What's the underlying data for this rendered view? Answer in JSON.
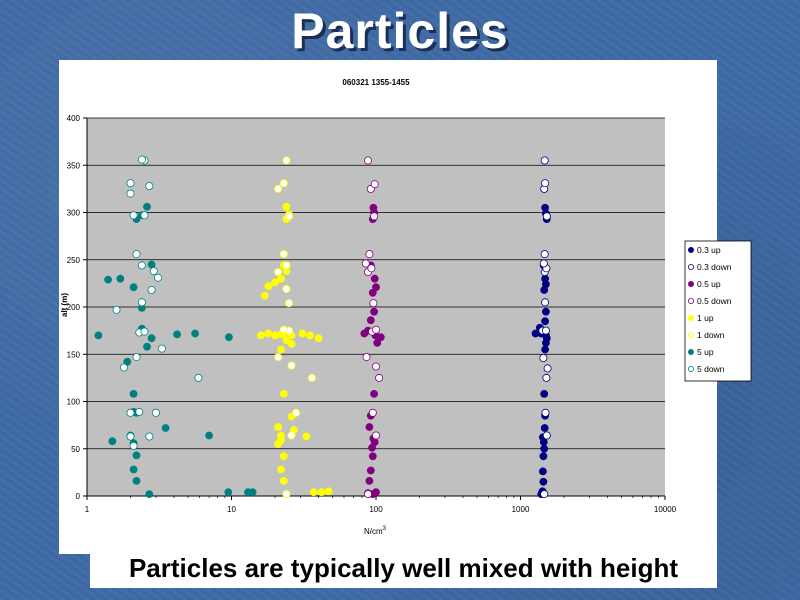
{
  "slide": {
    "title": "Particles",
    "caption": "Particles are typically well mixed with height"
  },
  "colors": {
    "plot_bg": "#c0c0c0",
    "gridline": "#000000"
  },
  "chart_data": {
    "type": "scatter",
    "title": "060321 1355-1455",
    "xlabel_main": "N/cm",
    "xlabel_sup": "3",
    "ylabel": "alt (m)",
    "x_scale": "log",
    "xlim": [
      1,
      10000
    ],
    "ylim": [
      0,
      400
    ],
    "x_ticks": [
      "1",
      "10",
      "100",
      "1000",
      "10000"
    ],
    "y_ticks": [
      "0",
      "50",
      "100",
      "150",
      "200",
      "250",
      "300",
      "350",
      "400"
    ],
    "grid": "horizontal",
    "legend_position": "right",
    "series": [
      {
        "name": "0.3 up",
        "color": "#000080",
        "filled": true,
        "points": [
          [
            1390,
            2
          ],
          [
            1410,
            3
          ],
          [
            1420,
            5
          ],
          [
            1440,
            15
          ],
          [
            1430,
            26
          ],
          [
            1440,
            42
          ],
          [
            1460,
            50
          ],
          [
            1450,
            57
          ],
          [
            1430,
            62
          ],
          [
            1470,
            72
          ],
          [
            1480,
            85
          ],
          [
            1460,
            108
          ],
          [
            1480,
            155
          ],
          [
            1500,
            162
          ],
          [
            1520,
            167
          ],
          [
            1500,
            170
          ],
          [
            1270,
            172
          ],
          [
            1390,
            172
          ],
          [
            1360,
            178
          ],
          [
            1480,
            185
          ],
          [
            1500,
            195
          ],
          [
            1460,
            218
          ],
          [
            1500,
            224
          ],
          [
            1480,
            230
          ],
          [
            1450,
            244
          ],
          [
            1520,
            293
          ],
          [
            1500,
            299
          ],
          [
            1480,
            305
          ]
        ]
      },
      {
        "name": "0.3 down",
        "color": "#000080",
        "filled": false,
        "points": [
          [
            1460,
            2
          ],
          [
            1520,
            64
          ],
          [
            1490,
            88
          ],
          [
            1510,
            125
          ],
          [
            1540,
            135
          ],
          [
            1440,
            146
          ],
          [
            1420,
            175
          ],
          [
            1500,
            175
          ],
          [
            1480,
            205
          ],
          [
            1470,
            237
          ],
          [
            1510,
            241
          ],
          [
            1450,
            246
          ],
          [
            1470,
            256
          ],
          [
            1520,
            296
          ],
          [
            1460,
            325
          ],
          [
            1480,
            331
          ],
          [
            1470,
            355
          ]
        ]
      },
      {
        "name": "0.5 up",
        "color": "#800080",
        "filled": true,
        "points": [
          [
            88,
            3
          ],
          [
            95,
            2
          ],
          [
            100,
            4
          ],
          [
            90,
            16
          ],
          [
            92,
            27
          ],
          [
            95,
            42
          ],
          [
            94,
            51
          ],
          [
            98,
            57
          ],
          [
            96,
            61
          ],
          [
            90,
            73
          ],
          [
            92,
            85
          ],
          [
            97,
            108
          ],
          [
            102,
            162
          ],
          [
            108,
            168
          ],
          [
            83,
            172
          ],
          [
            99,
            170
          ],
          [
            88,
            175
          ],
          [
            92,
            186
          ],
          [
            97,
            195
          ],
          [
            95,
            215
          ],
          [
            100,
            221
          ],
          [
            98,
            230
          ],
          [
            92,
            244
          ],
          [
            95,
            293
          ],
          [
            97,
            300
          ],
          [
            96,
            305
          ]
        ]
      },
      {
        "name": "0.5 down",
        "color": "#800080",
        "filled": false,
        "points": [
          [
            88,
            2
          ],
          [
            100,
            64
          ],
          [
            95,
            88
          ],
          [
            105,
            125
          ],
          [
            100,
            137
          ],
          [
            86,
            147
          ],
          [
            94,
            174
          ],
          [
            100,
            176
          ],
          [
            96,
            204
          ],
          [
            88,
            237
          ],
          [
            93,
            241
          ],
          [
            85,
            246
          ],
          [
            90,
            256
          ],
          [
            97,
            296
          ],
          [
            92,
            325
          ],
          [
            98,
            330
          ],
          [
            88,
            355
          ]
        ]
      },
      {
        "name": "1 up",
        "color": "#ffff00",
        "filled": true,
        "points": [
          [
            24,
            2
          ],
          [
            37,
            4
          ],
          [
            42,
            4
          ],
          [
            47,
            5
          ],
          [
            23,
            16
          ],
          [
            22,
            28
          ],
          [
            23,
            42
          ],
          [
            21,
            55
          ],
          [
            22,
            59
          ],
          [
            22,
            64
          ],
          [
            33,
            63
          ],
          [
            27,
            70
          ],
          [
            21,
            73
          ],
          [
            26,
            84
          ],
          [
            23,
            108
          ],
          [
            20,
            170
          ],
          [
            16,
            170
          ],
          [
            18,
            172
          ],
          [
            22,
            171
          ],
          [
            23,
            172
          ],
          [
            26,
            170
          ],
          [
            31,
            172
          ],
          [
            35,
            170
          ],
          [
            40,
            167
          ],
          [
            24,
            165
          ],
          [
            22,
            155
          ],
          [
            26,
            161
          ],
          [
            17,
            212
          ],
          [
            18,
            222
          ],
          [
            20,
            226
          ],
          [
            22,
            230
          ],
          [
            24,
            238
          ],
          [
            23,
            244
          ],
          [
            24,
            293
          ],
          [
            25,
            298
          ],
          [
            24,
            306
          ]
        ]
      },
      {
        "name": "1 down",
        "color": "#ffff00",
        "filled": false,
        "points": [
          [
            24,
            2
          ],
          [
            26,
            64
          ],
          [
            28,
            88
          ],
          [
            36,
            125
          ],
          [
            26,
            138
          ],
          [
            21,
            147
          ],
          [
            25,
            175
          ],
          [
            23,
            176
          ],
          [
            25,
            204
          ],
          [
            24,
            219
          ],
          [
            21,
            237
          ],
          [
            24,
            244
          ],
          [
            23,
            256
          ],
          [
            25,
            296
          ],
          [
            21,
            325
          ],
          [
            23,
            331
          ],
          [
            24,
            355
          ]
        ]
      },
      {
        "name": "5 up",
        "color": "#008080",
        "filled": true,
        "points": [
          [
            2.7,
            2
          ],
          [
            9.5,
            4
          ],
          [
            13,
            4
          ],
          [
            14,
            4
          ],
          [
            2.2,
            16
          ],
          [
            2.1,
            28
          ],
          [
            2.2,
            43
          ],
          [
            2.1,
            56
          ],
          [
            1.5,
            58
          ],
          [
            2.0,
            64
          ],
          [
            3.5,
            72
          ],
          [
            7.0,
            64
          ],
          [
            2.1,
            89
          ],
          [
            2.2,
            88
          ],
          [
            2.1,
            108
          ],
          [
            1.2,
            170
          ],
          [
            1.9,
            142
          ],
          [
            2.6,
            158
          ],
          [
            2.8,
            167
          ],
          [
            4.2,
            171
          ],
          [
            5.6,
            172
          ],
          [
            9.6,
            168
          ],
          [
            2.4,
            177
          ],
          [
            1.4,
            229
          ],
          [
            1.7,
            230
          ],
          [
            2.1,
            221
          ],
          [
            2.4,
            199
          ],
          [
            2.8,
            245
          ],
          [
            2.2,
            293
          ],
          [
            2.4,
            297
          ],
          [
            2.6,
            306
          ]
        ]
      },
      {
        "name": "5 down",
        "color": "#008080",
        "filled": false,
        "points": [
          [
            1.6,
            197
          ],
          [
            2.0,
            88
          ],
          [
            2.3,
            89
          ],
          [
            3.0,
            88
          ],
          [
            2.7,
            63
          ],
          [
            2.0,
            63
          ],
          [
            2.1,
            53
          ],
          [
            3.3,
            156
          ],
          [
            2.2,
            147
          ],
          [
            1.8,
            136
          ],
          [
            2.3,
            173
          ],
          [
            2.5,
            174
          ],
          [
            5.9,
            125
          ],
          [
            2.4,
            205
          ],
          [
            2.8,
            218
          ],
          [
            2.9,
            238
          ],
          [
            3.1,
            231
          ],
          [
            2.2,
            256
          ],
          [
            2.4,
            244
          ],
          [
            2.5,
            297
          ],
          [
            2.1,
            297
          ],
          [
            2.0,
            320
          ],
          [
            2.0,
            331
          ],
          [
            2.7,
            328
          ],
          [
            2.5,
            355
          ],
          [
            2.4,
            356
          ]
        ]
      }
    ]
  }
}
